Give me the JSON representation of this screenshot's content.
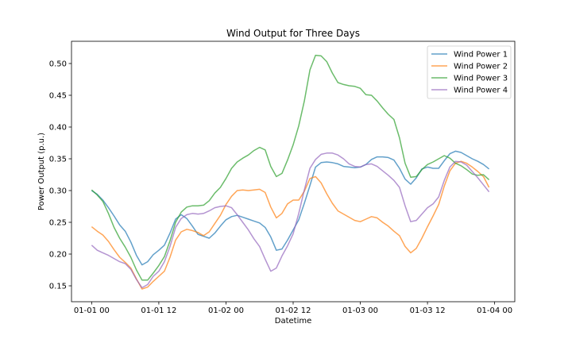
{
  "chart_data": {
    "type": "line",
    "title": "Wind Output for Three Days",
    "xlabel": "Datetime",
    "ylabel": "Power Output (p.u.)",
    "xlim_hours": [
      -3.6,
      75.6
    ],
    "ylim": [
      0.125,
      0.535
    ],
    "xticks": [
      {
        "hours": 0,
        "label": "01-01 00"
      },
      {
        "hours": 12,
        "label": "01-01 12"
      },
      {
        "hours": 24,
        "label": "01-02 00"
      },
      {
        "hours": 36,
        "label": "01-02 12"
      },
      {
        "hours": 48,
        "label": "01-03 00"
      },
      {
        "hours": 60,
        "label": "01-03 12"
      },
      {
        "hours": 72,
        "label": "01-04 00"
      }
    ],
    "yticks": [
      0.15,
      0.2,
      0.25,
      0.3,
      0.35,
      0.4,
      0.45,
      0.5
    ],
    "ytick_labels": [
      "0.15",
      "0.20",
      "0.25",
      "0.30",
      "0.35",
      "0.40",
      "0.45",
      "0.50"
    ],
    "grid": false,
    "legend_position": "top-right",
    "series": [
      {
        "name": "Wind Power 1",
        "color": "#1f77b4",
        "points": [
          [
            0,
            0.3
          ],
          [
            1,
            0.294
          ],
          [
            2,
            0.285
          ],
          [
            3,
            0.273
          ],
          [
            4,
            0.26
          ],
          [
            5,
            0.246
          ],
          [
            6,
            0.236
          ],
          [
            7,
            0.219
          ],
          [
            8,
            0.198
          ],
          [
            9,
            0.183
          ],
          [
            10,
            0.188
          ],
          [
            11,
            0.199
          ],
          [
            12,
            0.206
          ],
          [
            13,
            0.214
          ],
          [
            14,
            0.233
          ],
          [
            15,
            0.255
          ],
          [
            16,
            0.262
          ],
          [
            17,
            0.256
          ],
          [
            18,
            0.244
          ],
          [
            19,
            0.231
          ],
          [
            20,
            0.228
          ],
          [
            21,
            0.225
          ],
          [
            22,
            0.233
          ],
          [
            23,
            0.244
          ],
          [
            24,
            0.254
          ],
          [
            25,
            0.259
          ],
          [
            26,
            0.261
          ],
          [
            27,
            0.258
          ],
          [
            28,
            0.255
          ],
          [
            29,
            0.252
          ],
          [
            30,
            0.249
          ],
          [
            31,
            0.242
          ],
          [
            32,
            0.227
          ],
          [
            33,
            0.206
          ],
          [
            34,
            0.208
          ],
          [
            35,
            0.222
          ],
          [
            36,
            0.238
          ],
          [
            37,
            0.254
          ],
          [
            38,
            0.28
          ],
          [
            39,
            0.308
          ],
          [
            40,
            0.337
          ],
          [
            41,
            0.344
          ],
          [
            42,
            0.345
          ],
          [
            43,
            0.344
          ],
          [
            44,
            0.342
          ],
          [
            45,
            0.338
          ],
          [
            46,
            0.337
          ],
          [
            47,
            0.336
          ],
          [
            48,
            0.337
          ],
          [
            49,
            0.341
          ],
          [
            50,
            0.349
          ],
          [
            51,
            0.353
          ],
          [
            52,
            0.353
          ],
          [
            53,
            0.352
          ],
          [
            54,
            0.348
          ],
          [
            55,
            0.335
          ],
          [
            56,
            0.318
          ],
          [
            57,
            0.31
          ],
          [
            58,
            0.32
          ],
          [
            59,
            0.334
          ],
          [
            60,
            0.337
          ],
          [
            61,
            0.335
          ],
          [
            62,
            0.335
          ],
          [
            63,
            0.347
          ],
          [
            64,
            0.358
          ],
          [
            65,
            0.362
          ],
          [
            66,
            0.36
          ],
          [
            67,
            0.355
          ],
          [
            68,
            0.35
          ],
          [
            69,
            0.346
          ],
          [
            70,
            0.341
          ],
          [
            71,
            0.334
          ]
        ]
      },
      {
        "name": "Wind Power 2",
        "color": "#ff7f0e",
        "points": [
          [
            0,
            0.243
          ],
          [
            1,
            0.236
          ],
          [
            2,
            0.23
          ],
          [
            3,
            0.22
          ],
          [
            4,
            0.207
          ],
          [
            5,
            0.195
          ],
          [
            6,
            0.187
          ],
          [
            7,
            0.178
          ],
          [
            8,
            0.161
          ],
          [
            9,
            0.145
          ],
          [
            10,
            0.148
          ],
          [
            11,
            0.157
          ],
          [
            12,
            0.165
          ],
          [
            13,
            0.173
          ],
          [
            14,
            0.195
          ],
          [
            15,
            0.222
          ],
          [
            16,
            0.235
          ],
          [
            17,
            0.239
          ],
          [
            18,
            0.237
          ],
          [
            19,
            0.234
          ],
          [
            20,
            0.229
          ],
          [
            21,
            0.235
          ],
          [
            22,
            0.248
          ],
          [
            23,
            0.261
          ],
          [
            24,
            0.278
          ],
          [
            25,
            0.291
          ],
          [
            26,
            0.3
          ],
          [
            27,
            0.301
          ],
          [
            28,
            0.3
          ],
          [
            29,
            0.301
          ],
          [
            30,
            0.302
          ],
          [
            31,
            0.297
          ],
          [
            32,
            0.274
          ],
          [
            33,
            0.257
          ],
          [
            34,
            0.264
          ],
          [
            35,
            0.279
          ],
          [
            36,
            0.285
          ],
          [
            37,
            0.285
          ],
          [
            38,
            0.299
          ],
          [
            39,
            0.319
          ],
          [
            40,
            0.322
          ],
          [
            41,
            0.312
          ],
          [
            42,
            0.295
          ],
          [
            43,
            0.28
          ],
          [
            44,
            0.268
          ],
          [
            45,
            0.263
          ],
          [
            46,
            0.258
          ],
          [
            47,
            0.253
          ],
          [
            48,
            0.251
          ],
          [
            49,
            0.255
          ],
          [
            50,
            0.259
          ],
          [
            51,
            0.257
          ],
          [
            52,
            0.25
          ],
          [
            53,
            0.244
          ],
          [
            54,
            0.236
          ],
          [
            55,
            0.229
          ],
          [
            56,
            0.212
          ],
          [
            57,
            0.202
          ],
          [
            58,
            0.209
          ],
          [
            59,
            0.225
          ],
          [
            60,
            0.243
          ],
          [
            61,
            0.26
          ],
          [
            62,
            0.278
          ],
          [
            63,
            0.307
          ],
          [
            64,
            0.331
          ],
          [
            65,
            0.343
          ],
          [
            66,
            0.346
          ],
          [
            67,
            0.343
          ],
          [
            68,
            0.337
          ],
          [
            69,
            0.33
          ],
          [
            70,
            0.322
          ],
          [
            71,
            0.305
          ]
        ]
      },
      {
        "name": "Wind Power 3",
        "color": "#2ca02c",
        "points": [
          [
            0,
            0.301
          ],
          [
            1,
            0.293
          ],
          [
            2,
            0.283
          ],
          [
            3,
            0.264
          ],
          [
            4,
            0.242
          ],
          [
            5,
            0.225
          ],
          [
            6,
            0.211
          ],
          [
            7,
            0.195
          ],
          [
            8,
            0.175
          ],
          [
            9,
            0.159
          ],
          [
            10,
            0.159
          ],
          [
            11,
            0.17
          ],
          [
            12,
            0.182
          ],
          [
            13,
            0.196
          ],
          [
            14,
            0.221
          ],
          [
            15,
            0.25
          ],
          [
            16,
            0.266
          ],
          [
            17,
            0.274
          ],
          [
            18,
            0.276
          ],
          [
            19,
            0.276
          ],
          [
            20,
            0.277
          ],
          [
            21,
            0.284
          ],
          [
            22,
            0.296
          ],
          [
            23,
            0.305
          ],
          [
            24,
            0.319
          ],
          [
            25,
            0.335
          ],
          [
            26,
            0.345
          ],
          [
            27,
            0.351
          ],
          [
            28,
            0.356
          ],
          [
            29,
            0.363
          ],
          [
            30,
            0.368
          ],
          [
            31,
            0.364
          ],
          [
            32,
            0.338
          ],
          [
            33,
            0.322
          ],
          [
            34,
            0.327
          ],
          [
            35,
            0.348
          ],
          [
            36,
            0.372
          ],
          [
            37,
            0.402
          ],
          [
            38,
            0.441
          ],
          [
            39,
            0.49
          ],
          [
            40,
            0.513
          ],
          [
            41,
            0.512
          ],
          [
            42,
            0.503
          ],
          [
            43,
            0.485
          ],
          [
            44,
            0.47
          ],
          [
            45,
            0.467
          ],
          [
            46,
            0.465
          ],
          [
            47,
            0.464
          ],
          [
            48,
            0.461
          ],
          [
            49,
            0.451
          ],
          [
            50,
            0.45
          ],
          [
            51,
            0.441
          ],
          [
            52,
            0.43
          ],
          [
            53,
            0.42
          ],
          [
            54,
            0.412
          ],
          [
            55,
            0.383
          ],
          [
            56,
            0.343
          ],
          [
            57,
            0.321
          ],
          [
            58,
            0.322
          ],
          [
            59,
            0.333
          ],
          [
            60,
            0.341
          ],
          [
            61,
            0.345
          ],
          [
            62,
            0.35
          ],
          [
            63,
            0.355
          ],
          [
            64,
            0.351
          ],
          [
            65,
            0.343
          ],
          [
            66,
            0.339
          ],
          [
            67,
            0.333
          ],
          [
            68,
            0.326
          ],
          [
            69,
            0.324
          ],
          [
            70,
            0.325
          ],
          [
            71,
            0.317
          ]
        ]
      },
      {
        "name": "Wind Power 4",
        "color": "#9467bd",
        "points": [
          [
            0,
            0.214
          ],
          [
            1,
            0.206
          ],
          [
            2,
            0.202
          ],
          [
            3,
            0.198
          ],
          [
            4,
            0.193
          ],
          [
            5,
            0.188
          ],
          [
            6,
            0.185
          ],
          [
            7,
            0.176
          ],
          [
            8,
            0.16
          ],
          [
            9,
            0.147
          ],
          [
            10,
            0.152
          ],
          [
            11,
            0.165
          ],
          [
            12,
            0.173
          ],
          [
            13,
            0.188
          ],
          [
            14,
            0.212
          ],
          [
            15,
            0.242
          ],
          [
            16,
            0.256
          ],
          [
            17,
            0.262
          ],
          [
            18,
            0.264
          ],
          [
            19,
            0.263
          ],
          [
            20,
            0.264
          ],
          [
            21,
            0.268
          ],
          [
            22,
            0.273
          ],
          [
            23,
            0.275
          ],
          [
            24,
            0.276
          ],
          [
            25,
            0.273
          ],
          [
            26,
            0.262
          ],
          [
            27,
            0.25
          ],
          [
            28,
            0.238
          ],
          [
            29,
            0.224
          ],
          [
            30,
            0.212
          ],
          [
            31,
            0.192
          ],
          [
            32,
            0.173
          ],
          [
            33,
            0.178
          ],
          [
            34,
            0.197
          ],
          [
            35,
            0.213
          ],
          [
            36,
            0.232
          ],
          [
            37,
            0.264
          ],
          [
            38,
            0.301
          ],
          [
            39,
            0.335
          ],
          [
            40,
            0.349
          ],
          [
            41,
            0.357
          ],
          [
            42,
            0.359
          ],
          [
            43,
            0.359
          ],
          [
            44,
            0.356
          ],
          [
            45,
            0.35
          ],
          [
            46,
            0.342
          ],
          [
            47,
            0.338
          ],
          [
            48,
            0.337
          ],
          [
            49,
            0.341
          ],
          [
            50,
            0.342
          ],
          [
            51,
            0.338
          ],
          [
            52,
            0.331
          ],
          [
            53,
            0.324
          ],
          [
            54,
            0.316
          ],
          [
            55,
            0.305
          ],
          [
            56,
            0.276
          ],
          [
            57,
            0.251
          ],
          [
            58,
            0.253
          ],
          [
            59,
            0.263
          ],
          [
            60,
            0.273
          ],
          [
            61,
            0.279
          ],
          [
            62,
            0.29
          ],
          [
            63,
            0.316
          ],
          [
            64,
            0.337
          ],
          [
            65,
            0.346
          ],
          [
            66,
            0.345
          ],
          [
            67,
            0.34
          ],
          [
            68,
            0.33
          ],
          [
            69,
            0.32
          ],
          [
            70,
            0.309
          ],
          [
            71,
            0.298
          ]
        ]
      }
    ]
  }
}
